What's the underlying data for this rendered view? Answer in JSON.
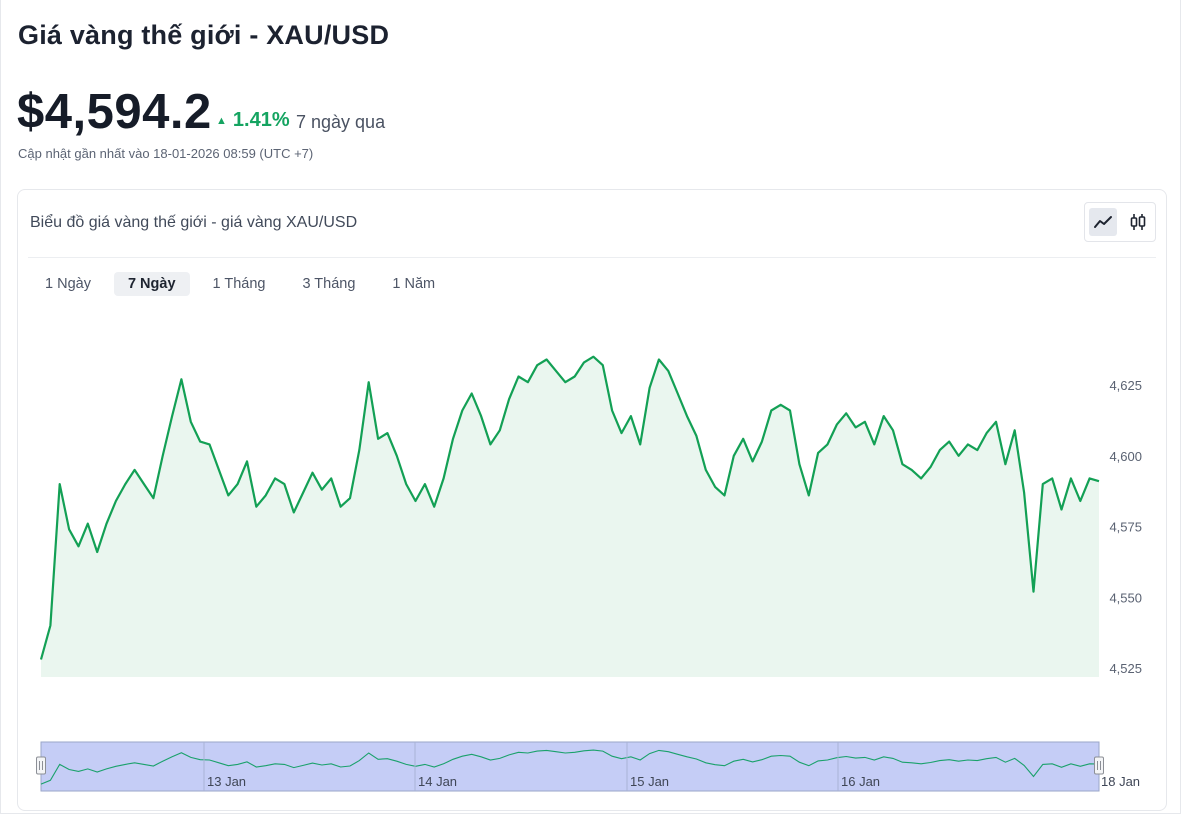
{
  "page": {
    "title": "Giá vàng thế giới - XAU/USD",
    "price": "$4,594.2",
    "change": "1.41%",
    "change_direction": "up",
    "change_color": "#15a461",
    "period": "7 ngày qua",
    "updated": "Cập nhật gần nhất vào 18-01-2026 08:59 (UTC +7)"
  },
  "card": {
    "title": "Biểu đồ giá vàng thế giới - giá vàng XAU/USD",
    "view_icons": [
      "line-chart-icon",
      "candlestick-icon"
    ],
    "active_view": "line-chart-icon"
  },
  "tabs": [
    {
      "label": "1 Ngày",
      "active": false
    },
    {
      "label": "7 Ngày",
      "active": true
    },
    {
      "label": "1 Tháng",
      "active": false
    },
    {
      "label": "3 Tháng",
      "active": false
    },
    {
      "label": "1 Năm",
      "active": false
    }
  ],
  "chart_data": {
    "type": "area",
    "title": "",
    "xlabel": "",
    "ylabel": "",
    "y_ticks": [
      "4,525",
      "4,550",
      "4,575",
      "4,600",
      "4,625"
    ],
    "y_tick_values": [
      4525,
      4550,
      4575,
      4600,
      4625
    ],
    "ylim": [
      4522,
      4648
    ],
    "x_tick_labels": [
      "13 Jan",
      "14 Jan",
      "15 Jan",
      "16 Jan",
      "18 Jan"
    ],
    "line_color": "#13a055",
    "fill_color": "#eaf6ef",
    "navigator_fill": "#c5cdf6",
    "series": [
      {
        "values": [
          4528,
          4540,
          4590,
          4574,
          4568,
          4576,
          4566,
          4576,
          4584,
          4590,
          4595,
          4590,
          4585,
          4600,
          4614,
          4627,
          4612,
          4605,
          4604,
          4595,
          4586,
          4590,
          4598,
          4582,
          4586,
          4592,
          4590,
          4580,
          4587,
          4594,
          4588,
          4592,
          4582,
          4585,
          4602,
          4626,
          4606,
          4608,
          4600,
          4590,
          4584,
          4590,
          4582,
          4592,
          4606,
          4616,
          4622,
          4614,
          4604,
          4609,
          4620,
          4628,
          4626,
          4632,
          4634,
          4630,
          4626,
          4628,
          4633,
          4635,
          4632,
          4616,
          4608,
          4614,
          4604,
          4624,
          4634,
          4630,
          4622,
          4614,
          4607,
          4595,
          4589,
          4586,
          4600,
          4606,
          4598,
          4605,
          4616,
          4618,
          4616,
          4597,
          4586,
          4601,
          4604,
          4611,
          4615,
          4610,
          4612,
          4604,
          4614,
          4609,
          4597,
          4595,
          4592,
          4596,
          4602,
          4605,
          4600,
          4604,
          4602,
          4608,
          4612,
          4597,
          4609,
          4587,
          4552,
          4590,
          4592,
          4581,
          4592,
          4584,
          4592,
          4591
        ]
      }
    ]
  }
}
